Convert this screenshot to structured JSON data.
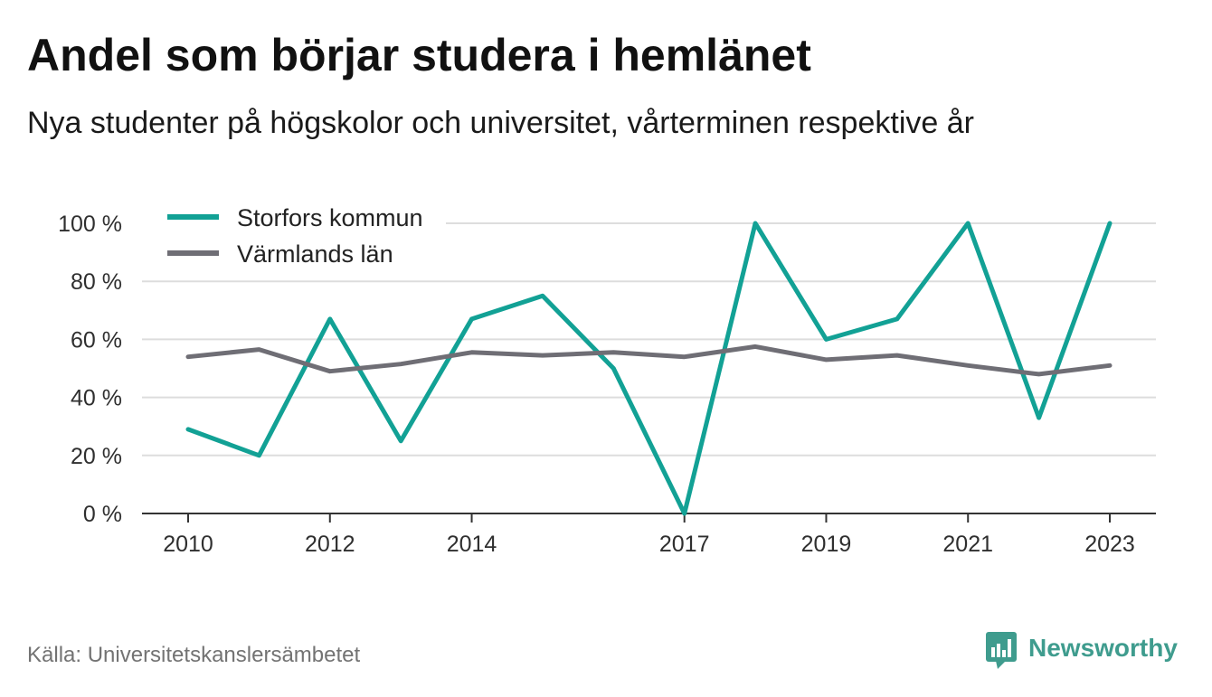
{
  "chart_data": {
    "type": "line",
    "title": "Andel som börjar studera i hemlänet",
    "subtitle": "Nya studenter på högskolor och universitet, vårterminen respektive år",
    "x": [
      2010,
      2011,
      2012,
      2013,
      2014,
      2015,
      2016,
      2017,
      2018,
      2019,
      2020,
      2021,
      2022,
      2023
    ],
    "x_tick_values": [
      2010,
      2012,
      2014,
      2017,
      2019,
      2021,
      2023
    ],
    "x_tick_labels": [
      "2010",
      "2012",
      "2014",
      "2017",
      "2019",
      "2021",
      "2023"
    ],
    "y_tick_values": [
      0,
      20,
      40,
      60,
      80,
      100
    ],
    "y_tick_labels": [
      "0 %",
      "20 %",
      "40 %",
      "60 %",
      "80 %",
      "100 %"
    ],
    "xlim": [
      2010,
      2023
    ],
    "ylim": [
      0,
      100
    ],
    "grid": true,
    "legend": "top-left",
    "series": [
      {
        "name": "Storfors kommun",
        "color": "#12a195",
        "values": [
          29,
          20,
          67,
          25,
          67,
          75,
          50,
          0,
          100,
          60,
          67,
          100,
          33,
          100
        ]
      },
      {
        "name": "Värmlands län",
        "color": "#6f6e75",
        "values": [
          54,
          56.5,
          49,
          51.5,
          55.5,
          54.5,
          55.5,
          54,
          57.5,
          53,
          54.5,
          51,
          48,
          51
        ]
      }
    ]
  },
  "source": "Källa: Universitetskanslersämbetet",
  "logo": {
    "text": "Newsworthy",
    "icon": "newsworthy-logo-icon",
    "color": "#3f9c8e"
  },
  "colors": {
    "grid": "#dddddd",
    "axis": "#333333",
    "legend_background": "#ffffff"
  }
}
